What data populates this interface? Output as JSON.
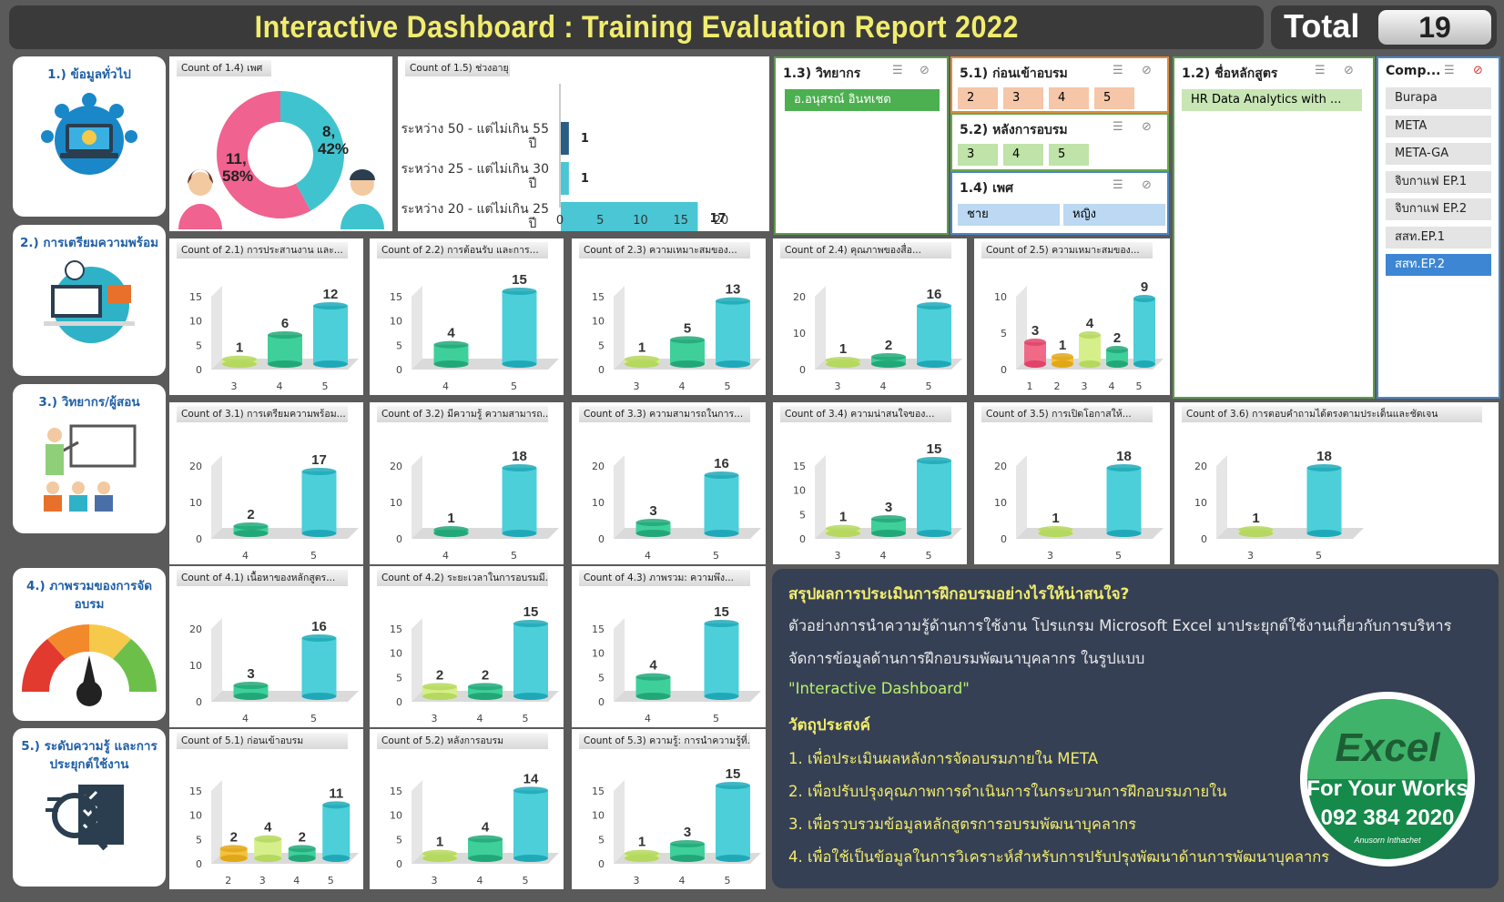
{
  "header": {
    "title": "Interactive Dashboard : Training Evaluation Report 2022",
    "total_label": "Total",
    "total_value": "19"
  },
  "sections": [
    {
      "title": "1.) ข้อมูลทั่วไป",
      "icon": "laptop-network-icon"
    },
    {
      "title": "2.) การเตรียมความพร้อม",
      "icon": "presentation-monitor-icon"
    },
    {
      "title": "3.) วิทยากร/ผู้สอน",
      "icon": "teacher-board-icon"
    },
    {
      "title": "4.) ภาพรวมของการจัดอบรม",
      "icon": "satisfaction-gauge-icon"
    },
    {
      "title": "5.) ระดับความรู้ และการประยุกต์ใช้งาน",
      "icon": "checklist-magnifier-icon"
    }
  ],
  "donut": {
    "title": "Count of 1.4) เพศ",
    "female_label": "11,",
    "female_pct": "58%",
    "male_label": "8,",
    "male_pct": "42%",
    "female_color": "#f0628f",
    "male_color": "#3fc4cf",
    "values": [
      11,
      8
    ]
  },
  "age_chart": {
    "title": "Count of 1.5) ช่วงอายุ",
    "categories": [
      {
        "l1": "ระหว่าง 50 - แต่ไม่เกิน 55",
        "l2": "ปี"
      },
      {
        "l1": "ระหว่าง 25 - แต่ไม่เกิน 30",
        "l2": "ปี"
      },
      {
        "l1": "ระหว่าง 20 - แต่ไม่เกิน 25",
        "l2": "ปี"
      }
    ],
    "values": [
      1,
      1,
      17
    ],
    "ticks": [
      "0",
      "5",
      "10",
      "15",
      "20"
    ],
    "xlim": [
      0,
      20
    ]
  },
  "chart_data": [
    {
      "type": "bar",
      "title": "Count of 2.1) การประสานงาน และ...",
      "categories": [
        "3",
        "4",
        "5"
      ],
      "values": [
        1,
        6,
        12
      ],
      "yticks": [
        "0",
        "5",
        "10",
        "15"
      ],
      "ymax": 15
    },
    {
      "type": "bar",
      "title": "Count of 2.2) การต้อนรับ และการ...",
      "categories": [
        "4",
        "5"
      ],
      "values": [
        4,
        15
      ],
      "yticks": [
        "0",
        "5",
        "10",
        "15"
      ],
      "ymax": 15
    },
    {
      "type": "bar",
      "title": "Count of 2.3) ความเหมาะสมของ...",
      "categories": [
        "3",
        "4",
        "5"
      ],
      "values": [
        1,
        5,
        13
      ],
      "yticks": [
        "0",
        "5",
        "10",
        "15"
      ],
      "ymax": 15
    },
    {
      "type": "bar",
      "title": "Count of 2.4) คุณภาพของสื่อ...",
      "categories": [
        "3",
        "4",
        "5"
      ],
      "values": [
        1,
        2,
        16
      ],
      "yticks": [
        "0",
        "10",
        "20"
      ],
      "ymax": 20
    },
    {
      "type": "bar",
      "title": "Count of 2.5) ความเหมาะสมของ...",
      "categories": [
        "1",
        "2",
        "3",
        "4",
        "5"
      ],
      "values": [
        3,
        1,
        4,
        2,
        9
      ],
      "yticks": [
        "0",
        "5",
        "10"
      ],
      "ymax": 10
    },
    {
      "type": "bar",
      "title": "Count of 3.1) การเตรียมความพร้อม...",
      "categories": [
        "4",
        "5"
      ],
      "values": [
        2,
        17
      ],
      "yticks": [
        "0",
        "10",
        "20"
      ],
      "ymax": 20
    },
    {
      "type": "bar",
      "title": "Count of 3.2) มีความรู้ ความสามารถ...",
      "categories": [
        "4",
        "5"
      ],
      "values": [
        1,
        18
      ],
      "yticks": [
        "0",
        "10",
        "20"
      ],
      "ymax": 20
    },
    {
      "type": "bar",
      "title": "Count of 3.3) ความสามารถในการ...",
      "categories": [
        "4",
        "5"
      ],
      "values": [
        3,
        16
      ],
      "yticks": [
        "0",
        "10",
        "20"
      ],
      "ymax": 20
    },
    {
      "type": "bar",
      "title": "Count of 3.4) ความน่าสนใจของ...",
      "categories": [
        "3",
        "4",
        "5"
      ],
      "values": [
        1,
        3,
        15
      ],
      "yticks": [
        "0",
        "5",
        "10",
        "15"
      ],
      "ymax": 15
    },
    {
      "type": "bar",
      "title": "Count of 3.5) การเปิดโอกาสให้...",
      "categories": [
        "3",
        "5"
      ],
      "values": [
        1,
        18
      ],
      "yticks": [
        "0",
        "10",
        "20"
      ],
      "ymax": 20
    },
    {
      "type": "bar",
      "title": "Count of 3.6) การตอบคำถามได้ตรงตามประเด็นและชัดเจน",
      "categories": [
        "3",
        "5"
      ],
      "values": [
        1,
        18
      ],
      "yticks": [
        "0",
        "10",
        "20"
      ],
      "ymax": 20
    },
    {
      "type": "bar",
      "title": "Count of 4.1) เนื้อหาของหลักสูตร...",
      "categories": [
        "4",
        "5"
      ],
      "values": [
        3,
        16
      ],
      "yticks": [
        "0",
        "10",
        "20"
      ],
      "ymax": 20
    },
    {
      "type": "bar",
      "title": "Count of 4.2) ระยะเวลาในการอบรมมี...",
      "categories": [
        "3",
        "4",
        "5"
      ],
      "values": [
        2,
        2,
        15
      ],
      "yticks": [
        "0",
        "5",
        "10",
        "15"
      ],
      "ymax": 15
    },
    {
      "type": "bar",
      "title": "Count of 4.3) ภาพรวม: ความพึง...",
      "categories": [
        "4",
        "5"
      ],
      "values": [
        4,
        15
      ],
      "yticks": [
        "0",
        "5",
        "10",
        "15"
      ],
      "ymax": 15
    },
    {
      "type": "bar",
      "title": "Count of 5.1) ก่อนเข้าอบรม",
      "categories": [
        "2",
        "3",
        "4",
        "5"
      ],
      "values": [
        2,
        4,
        2,
        11
      ],
      "yticks": [
        "0",
        "5",
        "10",
        "15"
      ],
      "ymax": 15
    },
    {
      "type": "bar",
      "title": "Count of 5.2) หลังการอบรม",
      "categories": [
        "3",
        "4",
        "5"
      ],
      "values": [
        1,
        4,
        14
      ],
      "yticks": [
        "0",
        "5",
        "10",
        "15"
      ],
      "ymax": 15
    },
    {
      "type": "bar",
      "title": "Count of 5.3) ความรู้: การนำความรู้ที่...",
      "categories": [
        "3",
        "4",
        "5"
      ],
      "values": [
        1,
        3,
        15
      ],
      "yticks": [
        "0",
        "5",
        "10",
        "15"
      ],
      "ymax": 15
    }
  ],
  "slicers": {
    "speaker": {
      "title": "1.3) วิทยากร",
      "items": [
        "อ.อนุสรณ์ อินทเชต"
      ]
    },
    "before": {
      "title": "5.1) ก่อนเข้าอบรม",
      "items": [
        "2",
        "3",
        "4",
        "5"
      ]
    },
    "after": {
      "title": "5.2) หลังการอบรม",
      "items": [
        "3",
        "4",
        "5"
      ]
    },
    "gender": {
      "title": "1.4) เพศ",
      "items": [
        "ชาย",
        "หญิง"
      ]
    },
    "course": {
      "title": "1.2) ชื่อหลักสูตร",
      "items": [
        "HR Data Analytics with ..."
      ]
    },
    "company": {
      "title": "Comp...",
      "items": [
        "Burapa",
        "META",
        "META-GA",
        "จิบกาแฟ EP.1",
        "จิบกาแฟ EP.2",
        "สสท.EP.1",
        "สสท.EP.2"
      ]
    }
  },
  "summary": {
    "heading": "สรุปผลการประเมินการฝึกอบรมอย่างไรให้น่าสนใจ?",
    "line1": "ตัวอย่างการนำความรู้ด้านการใช้งาน  โปรแกรม Microsoft Excel มาประยุกต์ใช้งานเกี่ยวกับการบริหาร",
    "line2": "จัดการข้อมูลด้านการฝึกอบรมพัฒนาบุคลากร  ในรูปแบบ",
    "highlight": "\"Interactive Dashboard\"",
    "obj_title": "วัตถุประสงค์",
    "objectives": [
      "1. เพื่อประเมินผลหลังการจัดอบรมภายใน  META",
      "2. เพื่อปรับปรุงคุณภาพการดำเนินการในกระบวนการฝึกอบรมภายใน",
      "3. เพื่อรวบรวมข้อมูลหลักสูตรการอบรมพัฒนาบุคลากร",
      "4. เพื่อใช้เป็นข้อมูลในการวิเคราะห์สำหรับการปรับปรุงพัฒนาด้านการพัฒนาบุคลากร"
    ]
  },
  "logo": {
    "brand": "Excel",
    "line": "For Your Works",
    "phone": "092 384 2020",
    "author": "Anusorn Inthachet"
  }
}
